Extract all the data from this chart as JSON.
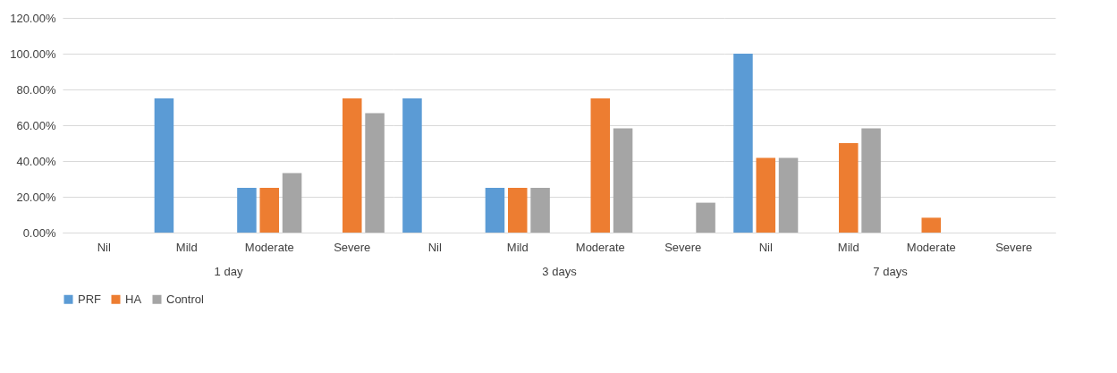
{
  "chart_data": [
    {
      "type": "bar",
      "xlabel": "1 day",
      "categories": [
        "Nil",
        "Mild",
        "Moderate",
        "Severe"
      ],
      "series": [
        {
          "name": "PRF",
          "color": "#5b9bd5",
          "values": [
            0,
            75,
            25,
            0
          ]
        },
        {
          "name": "HA",
          "color": "#ed7d31",
          "values": [
            0,
            0,
            25,
            75
          ]
        },
        {
          "name": "Control",
          "color": "#a5a5a5",
          "values": [
            0,
            0,
            33.3,
            66.7
          ]
        }
      ],
      "ylim": [
        0,
        120
      ],
      "yticks": [
        {
          "value": 0,
          "label": "0.00%"
        },
        {
          "value": 20,
          "label": "20.00%"
        },
        {
          "value": 40,
          "label": "40.00%"
        },
        {
          "value": 60,
          "label": "60.00%"
        },
        {
          "value": 80,
          "label": "80.00%"
        },
        {
          "value": 100,
          "label": "100.00%"
        },
        {
          "value": 120,
          "label": "120.00%"
        }
      ],
      "grid": "y",
      "legend": "bottom"
    },
    {
      "type": "bar",
      "xlabel": "3 days",
      "categories": [
        "Nil",
        "Mild",
        "Moderate",
        "Severe"
      ],
      "series": [
        {
          "color": "#5b9bd5",
          "values": [
            75,
            25,
            0,
            0
          ]
        },
        {
          "color": "#ed7d31",
          "values": [
            0,
            25,
            75,
            0
          ]
        },
        {
          "color": "#a5a5a5",
          "values": [
            0,
            25,
            58.3,
            16.7
          ]
        }
      ],
      "ylim": [
        0,
        120
      ],
      "yticks": [
        0,
        20,
        40,
        60,
        80,
        100,
        120
      ],
      "grid": "y",
      "tick_labels": "x"
    },
    {
      "type": "bar",
      "xlabel": "7 days",
      "categories": [
        "Nil",
        "Mild",
        "Moderate",
        "Severe"
      ],
      "series": [
        {
          "color": "#5b9bd5",
          "values": [
            100,
            0,
            0,
            0
          ]
        },
        {
          "color": "#ed7d31",
          "values": [
            41.7,
            50,
            8.3,
            0
          ]
        },
        {
          "color": "#a5a5a5",
          "values": [
            41.7,
            58.3,
            0,
            0
          ]
        }
      ],
      "ylim": [
        0,
        120
      ],
      "yticks": [
        0,
        20,
        40,
        60,
        80,
        100,
        120
      ],
      "grid": "y",
      "tick_labels": "x"
    }
  ]
}
